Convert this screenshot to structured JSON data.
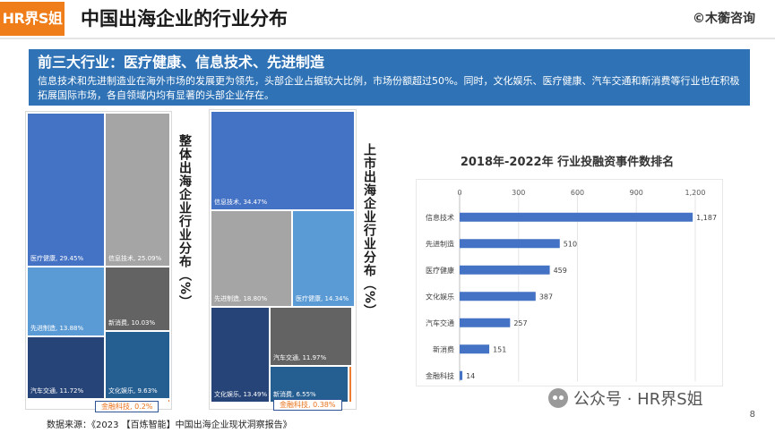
{
  "header": {
    "logo": "HR界S姐",
    "title": "中国出海企业的行业分布",
    "copyright": "©木蘅咨询"
  },
  "banner": {
    "heading": "前三大行业：医疗健康、信息技术、先进制造",
    "text": "信息技术和先进制造业在海外市场的发展更为领先，头部企业占据较大比例，市场份额超过50%。同时，文化娱乐、医疗健康、汽车交通和新消费等行业也在积极拓展国际市场，各自领域内均有显著的头部企业存在。"
  },
  "colors": {
    "accent_orange": "#ef7d1a",
    "banner_blue": "#2f73b6",
    "bar_blue": "#4472c4"
  },
  "chart_data": [
    {
      "type": "treemap",
      "title": "整体出海企业行业分布（%）",
      "items": [
        {
          "label": "医疗健康",
          "value": 29.45,
          "display": "医疗健康, 29.45%",
          "color": "#4472c4"
        },
        {
          "label": "信息技术",
          "value": 25.09,
          "display": "信息技术, 25.09%",
          "color": "#a5a5a5"
        },
        {
          "label": "先进制造",
          "value": 13.88,
          "display": "先进制造, 13.88%",
          "color": "#5b9bd5"
        },
        {
          "label": "新消费",
          "value": 10.03,
          "display": "新消费, 10.03%",
          "color": "#636363"
        },
        {
          "label": "汽车交通",
          "value": 11.72,
          "display": "汽车交通, 11.72%",
          "color": "#264478"
        },
        {
          "label": "文化娱乐",
          "value": 9.63,
          "display": "文化娱乐, 9.63%",
          "color": "#255e91"
        },
        {
          "label": "金融科技",
          "value": 0.2,
          "display": "金融科技, 0.2%",
          "color": "#ed7d31"
        }
      ]
    },
    {
      "type": "treemap",
      "title": "上市出海企业行业分布（%）",
      "items": [
        {
          "label": "信息技术",
          "value": 34.47,
          "display": "信息技术, 34.47%",
          "color": "#4472c4"
        },
        {
          "label": "先进制造",
          "value": 18.8,
          "display": "先进制造, 18.80%",
          "color": "#a5a5a5"
        },
        {
          "label": "医疗健康",
          "value": 14.34,
          "display": "医疗健康, 14.34%",
          "color": "#5b9bd5"
        },
        {
          "label": "文化娱乐",
          "value": 13.49,
          "display": "文化娱乐, 13.49%",
          "color": "#264478"
        },
        {
          "label": "汽车交通",
          "value": 11.97,
          "display": "汽车交通, 11.97%",
          "color": "#636363"
        },
        {
          "label": "新消费",
          "value": 6.55,
          "display": "新消费, 6.55%",
          "color": "#255e91"
        },
        {
          "label": "金融科技",
          "value": 0.38,
          "display": "金融科技, 0.38%",
          "color": "#ed7d31"
        }
      ]
    },
    {
      "type": "bar",
      "orientation": "horizontal",
      "title": "2018年-2022年 行业投融资事件数排名",
      "categories": [
        "信息技术",
        "先进制造",
        "医疗健康",
        "文化娱乐",
        "汽车交通",
        "新消费",
        "金融科技"
      ],
      "values": [
        1187,
        510,
        459,
        387,
        257,
        151,
        14
      ],
      "xticks": [
        0,
        300,
        600,
        900,
        1200
      ],
      "xtick_labels": [
        "0",
        "300",
        "600",
        "900",
        "1,200"
      ],
      "value_labels": [
        "1,187",
        "510",
        "459",
        "387",
        "257",
        "151",
        "14"
      ],
      "xlim": [
        0,
        1200
      ],
      "grid": true,
      "axis_position": "top"
    }
  ],
  "footer": {
    "source": "数据来源：《2023 【百炼智能】中国出海企业现状洞察报告》",
    "watermark": "公众号 · HR界S姐",
    "page_number": "8"
  }
}
